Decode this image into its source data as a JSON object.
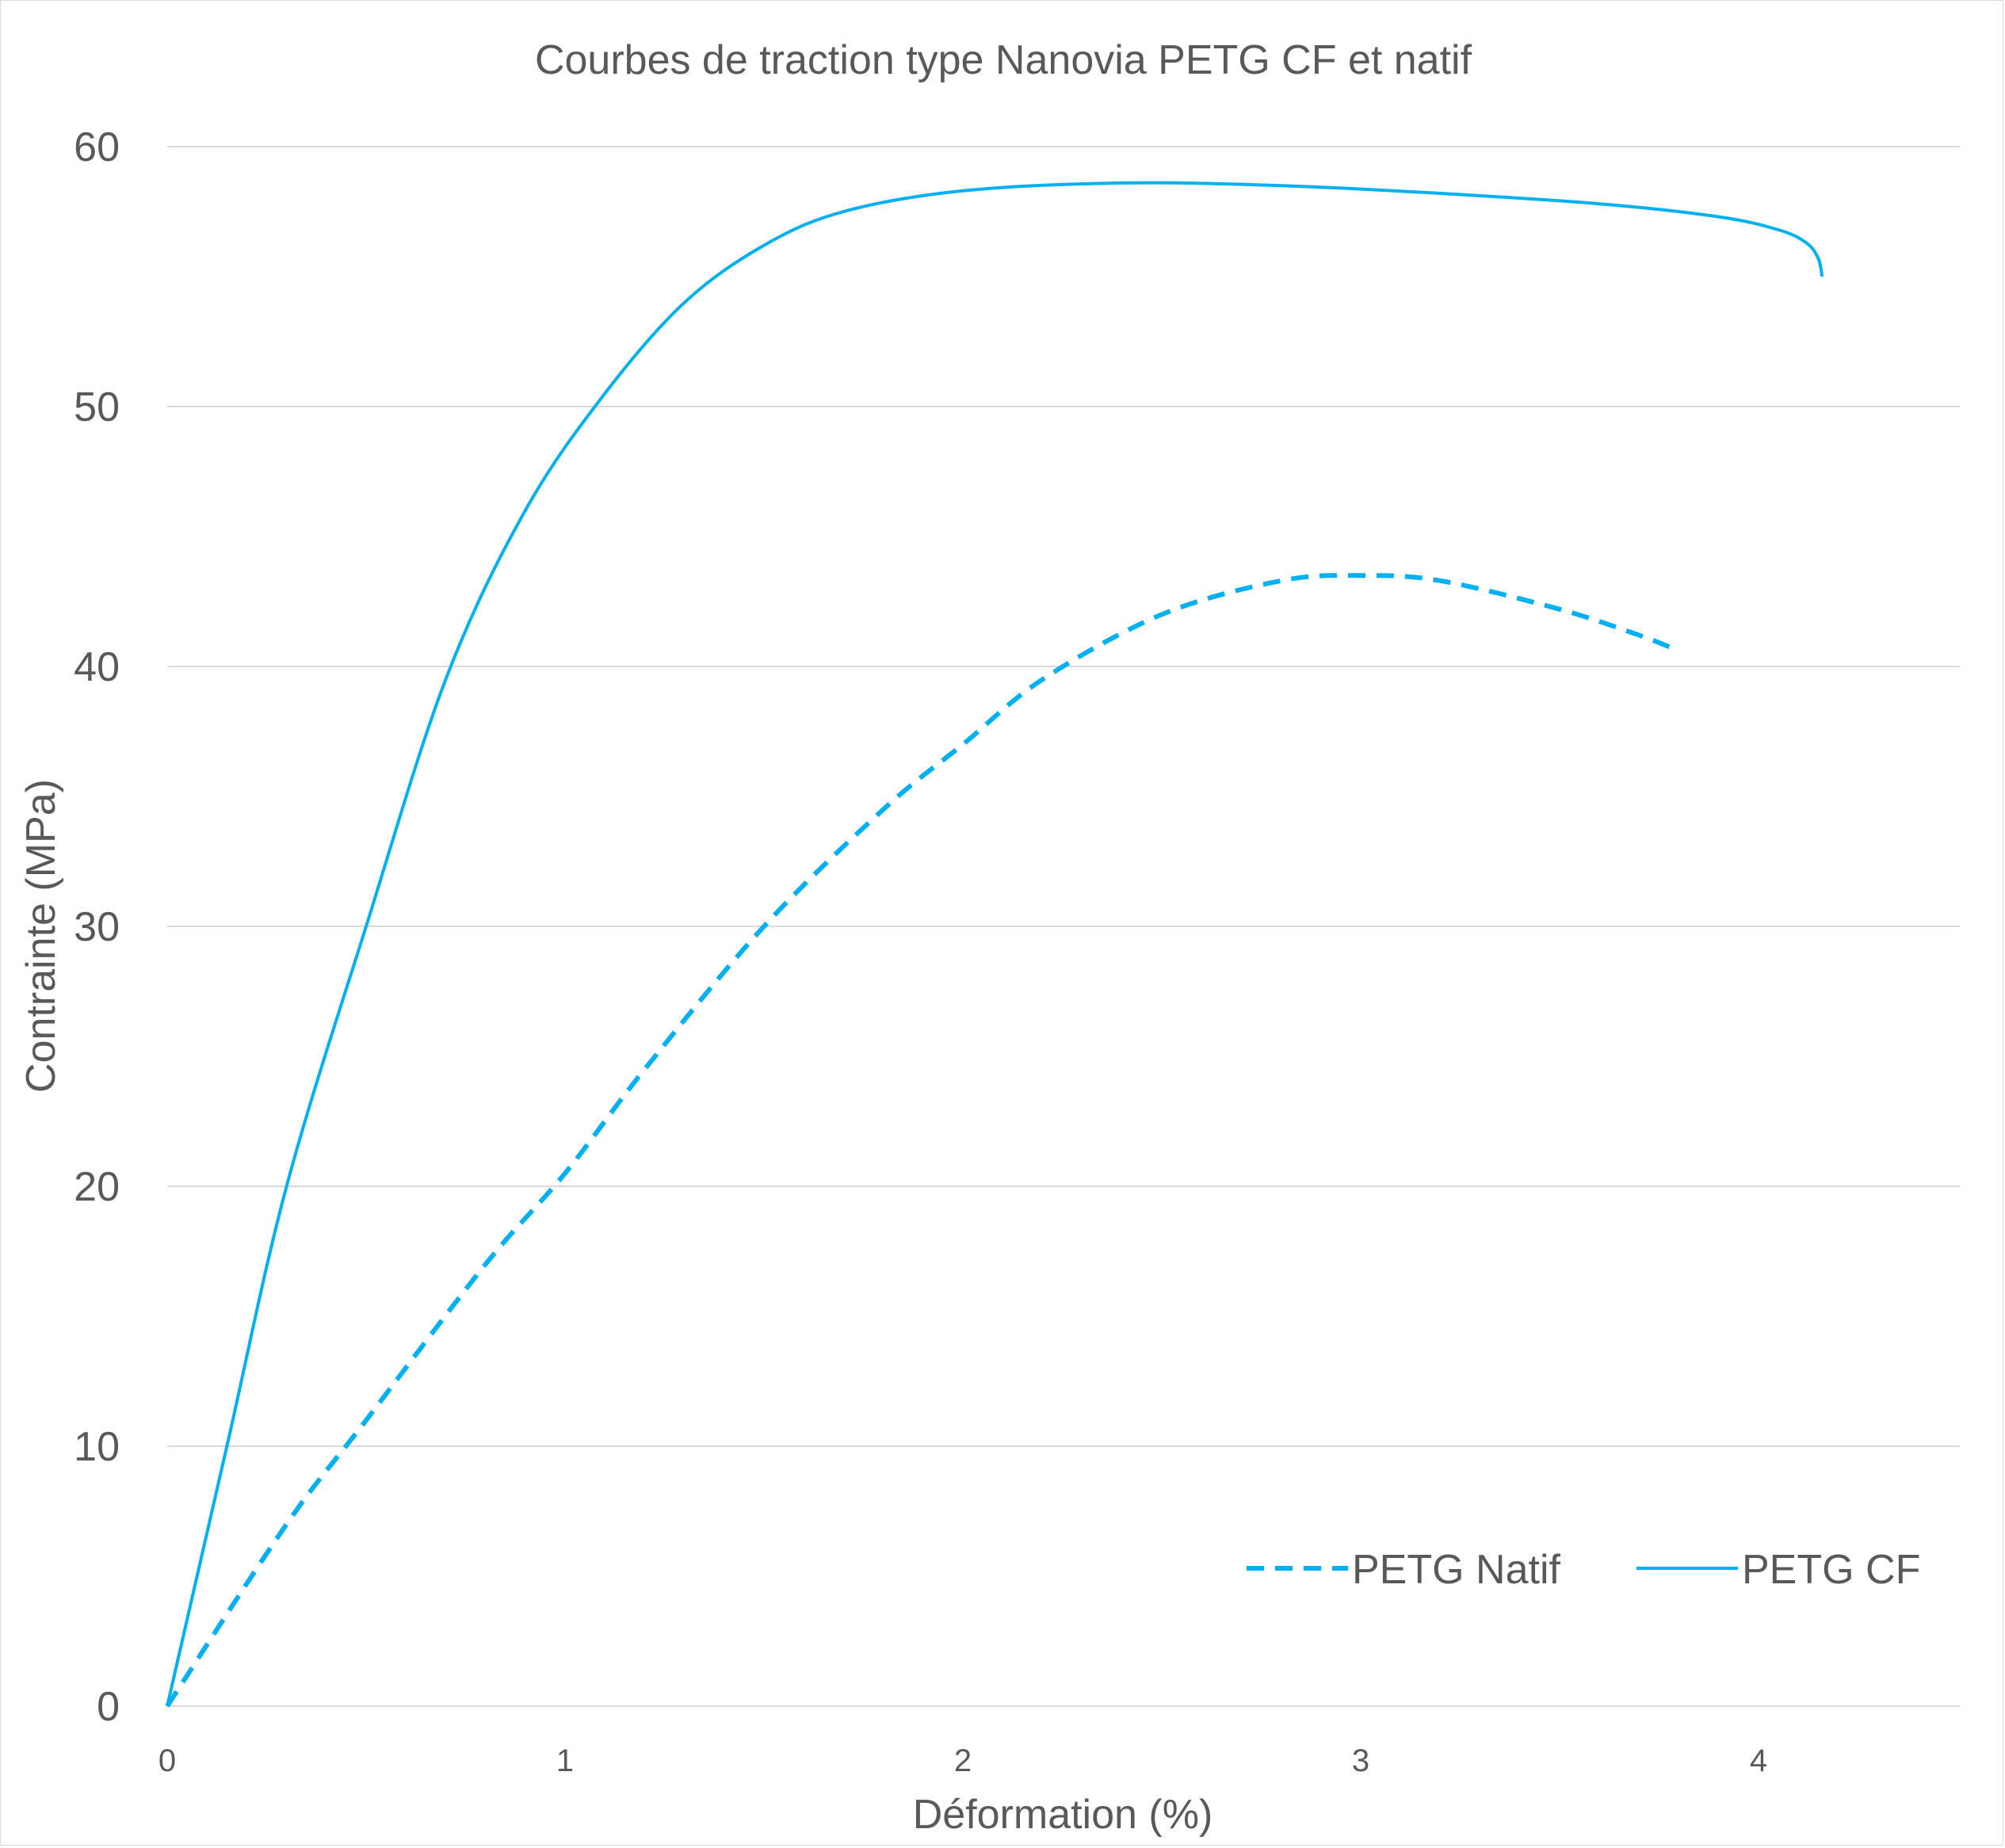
{
  "chart_data": {
    "type": "line",
    "title": "Courbes de traction type Nanovia PETG CF et natif",
    "xlabel": "Déformation (%)",
    "ylabel": "Contrainte (MPa)",
    "xlim": [
      0,
      4.5
    ],
    "ylim": [
      0,
      60
    ],
    "xticks": [
      "0",
      "1",
      "2",
      "3",
      "4"
    ],
    "yticks": [
      "0",
      "10",
      "20",
      "30",
      "40",
      "50",
      "60"
    ],
    "grid": true,
    "legend_position": "bottom-right",
    "line_color": "#00B0F0",
    "series": [
      {
        "name": "PETG Natif",
        "style": "dashed",
        "x": [
          0,
          0.3,
          0.5,
          0.8,
          1.0,
          1.2,
          1.5,
          1.8,
          2.0,
          2.2,
          2.5,
          2.8,
          3.0,
          3.2,
          3.5,
          3.7,
          3.8
        ],
        "y": [
          0,
          7,
          11,
          17,
          20.5,
          24.5,
          30,
          34.5,
          37,
          39.5,
          42,
          43.3,
          43.5,
          43.3,
          42.2,
          41.2,
          40.6
        ]
      },
      {
        "name": "PETG CF",
        "style": "solid",
        "x": [
          0,
          0.15,
          0.3,
          0.5,
          0.7,
          0.9,
          1.1,
          1.3,
          1.5,
          1.7,
          2.0,
          2.4,
          2.8,
          3.2,
          3.6,
          3.9,
          4.05,
          4.12,
          4.15,
          4.16
        ],
        "y": [
          0,
          10,
          20,
          30,
          39.5,
          46,
          50.5,
          54,
          56.2,
          57.5,
          58.3,
          58.6,
          58.5,
          58.2,
          57.8,
          57.3,
          56.8,
          56.3,
          55.7,
          55
        ]
      }
    ]
  }
}
